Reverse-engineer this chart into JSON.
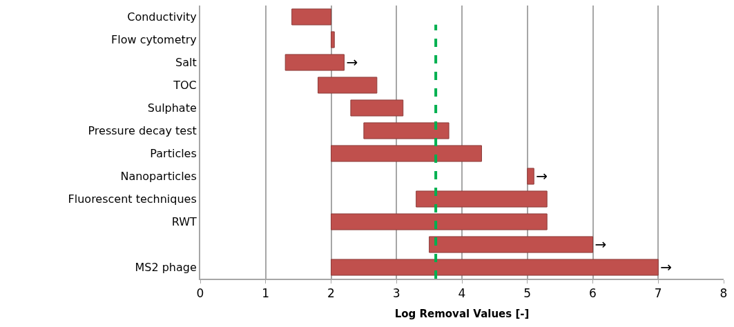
{
  "chart_data": {
    "type": "bar",
    "orientation": "horizontal",
    "categories": [
      "Conductivity",
      "Flow cytometry",
      "Salt",
      "TOC",
      "Sulphate",
      "Pressure decay test",
      "Particles",
      "Nanoparticles",
      "Fluorescent techniques",
      "RWT",
      null,
      "MS2 phage"
    ],
    "base": [
      1.4,
      2.0,
      1.3,
      1.8,
      2.3,
      2.5,
      2.0,
      5.0,
      3.3,
      2.0,
      3.5,
      2.0
    ],
    "values": [
      0.6,
      0.05,
      0.9,
      0.9,
      0.8,
      1.3,
      2.3,
      0.1,
      2.0,
      3.3,
      2.5,
      5.0
    ],
    "value_labels": [
      null,
      null,
      "→",
      null,
      null,
      null,
      null,
      "→",
      null,
      null,
      "→",
      "→"
    ],
    "color": "#c0504d",
    "xlabel": "Log Removal Values [-]",
    "xlim": [
      0,
      8
    ],
    "xticks": [
      0,
      1,
      2,
      3,
      4,
      5,
      6,
      7,
      8
    ],
    "grid": "x",
    "ref_lines": [
      {
        "axis": "x",
        "value": 3.6,
        "color": "#00b050",
        "line_style": "dashed"
      }
    ]
  }
}
